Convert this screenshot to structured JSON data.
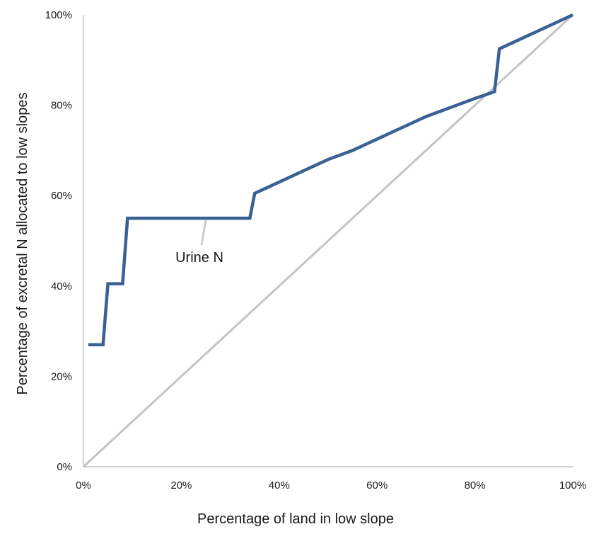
{
  "chart_data": {
    "type": "line",
    "title": "",
    "xlabel": "Percentage of land in low slope",
    "ylabel": "Percentage of excretal N allocated to low slopes",
    "xlim": [
      0,
      100
    ],
    "ylim": [
      0,
      100
    ],
    "x_ticks": [
      "0%",
      "20%",
      "40%",
      "60%",
      "80%",
      "100%"
    ],
    "y_ticks": [
      "0%",
      "20%",
      "40%",
      "60%",
      "80%",
      "100%"
    ],
    "grid": false,
    "legend": "none",
    "series": [
      {
        "name": "Urine N",
        "color": "#3a6194",
        "points": [
          [
            1,
            27
          ],
          [
            4,
            27
          ],
          [
            5,
            40.5
          ],
          [
            8,
            40.5
          ],
          [
            9,
            55
          ],
          [
            34,
            55
          ],
          [
            35,
            60.5
          ],
          [
            36,
            61
          ],
          [
            40,
            63
          ],
          [
            45,
            65.5
          ],
          [
            50,
            68
          ],
          [
            55,
            70
          ],
          [
            60,
            72.5
          ],
          [
            65,
            75
          ],
          [
            70,
            77.5
          ],
          [
            75,
            79.5
          ],
          [
            80,
            81.5
          ],
          [
            84,
            83
          ],
          [
            85,
            92.5
          ],
          [
            90,
            95
          ],
          [
            95,
            97.5
          ],
          [
            100,
            100
          ]
        ]
      },
      {
        "name": "",
        "color": "#c4c4c4",
        "points": [
          [
            0,
            0
          ],
          [
            100,
            100
          ]
        ]
      }
    ],
    "annotations": [
      {
        "text": "Urine N",
        "x": 25,
        "y": 55
      }
    ]
  }
}
